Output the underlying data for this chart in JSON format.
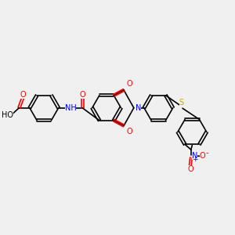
{
  "bg_color": "#f0f0f0",
  "bond_color": "#000000",
  "bond_width": 1.2,
  "figsize": [
    3.0,
    3.0
  ],
  "dpi": 100,
  "atoms": {
    "O_red": "#ff0000",
    "N_blue": "#0000ff",
    "S_yellow": "#ccaa00",
    "C_black": "#000000"
  },
  "font_size_atom": 7.0,
  "font_size_small": 5.5,
  "xlim": [
    0,
    12
  ],
  "ylim": [
    0,
    10
  ]
}
